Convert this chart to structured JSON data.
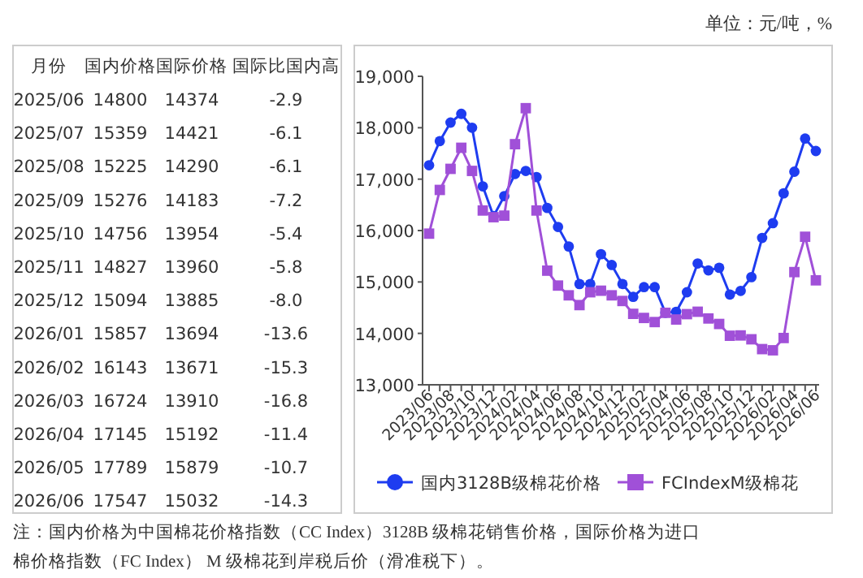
{
  "chart_data": [
    {
      "type": "other",
      "xlabel": "月份",
      "data_labels": true,
      "annotations": [
        "单位：元/吨，%"
      ],
      "categories": [
        "2025/06",
        "2025/07",
        "2025/08",
        "2025/09",
        "2025/10",
        "2025/11",
        "2025/12",
        "2026/01",
        "2026/02",
        "2026/03",
        "2026/04",
        "2026/05",
        "2026/06"
      ],
      "series": [
        {
          "name": "国内价格",
          "values": [
            14800,
            15359,
            15225,
            15276,
            14756,
            14827,
            15094,
            15857,
            16143,
            16724,
            17145,
            17789,
            17547
          ]
        },
        {
          "name": "国际价格",
          "values": [
            14374,
            14421,
            14290,
            14183,
            13954,
            13960,
            13885,
            13694,
            13671,
            13910,
            15192,
            15879,
            15032
          ]
        },
        {
          "name": "国际比国内高",
          "values": [
            -2.9,
            -6.1,
            -6.1,
            -7.2,
            -5.4,
            -5.8,
            -8.0,
            -13.6,
            -15.3,
            -16.8,
            -11.4,
            -10.7,
            -14.3
          ],
          "value_labels": [
            "-2.9",
            "-6.1",
            "-6.1",
            "-7.2",
            "-5.4",
            "-5.8",
            "-8.0",
            "-13.6",
            "-15.3",
            "-16.8",
            "-11.4",
            "-10.7",
            "-14.3"
          ]
        }
      ]
    },
    {
      "type": "line",
      "annotations": [
        "注：国内价格为中国棉花价格指数（CC Index）3128B 级棉花销售价格，国际价格为进口棉价格指数（FC Index） M 级棉花到岸税后价（滑准税下）。"
      ],
      "categories": [
        "2023/06",
        null,
        "2023/08",
        null,
        "2023/10",
        null,
        "2023/12",
        null,
        "2024/02",
        null,
        "2024/04",
        null,
        "2024/06",
        null,
        "2024/08",
        null,
        "2024/10",
        null,
        "2024/12",
        null,
        "2025/02",
        null,
        "2025/04",
        null,
        "2025/06",
        null,
        "2025/08",
        null,
        "2025/10",
        null,
        "2025/12",
        null,
        "2026/02",
        null,
        "2026/04",
        null,
        "2026/06"
      ],
      "ylim": [
        13000,
        19000
      ],
      "yticks": [
        {
          "value": 13000,
          "label": "13,000"
        },
        {
          "value": 14000,
          "label": "14,000"
        },
        {
          "value": 15000,
          "label": "15,000"
        },
        {
          "value": 16000,
          "label": "16,000"
        },
        {
          "value": 17000,
          "label": "17,000"
        },
        {
          "value": 18000,
          "label": "18,000"
        },
        {
          "value": 19000,
          "label": "19,000"
        }
      ],
      "grid": false,
      "legend": "bottom",
      "line_style": "solid",
      "series": [
        {
          "name": "国内3128B级棉花价格",
          "color": "#1e3cf0",
          "marker": "circle",
          "values": [
            17270,
            17740,
            18100,
            18270,
            18000,
            16860,
            16280,
            16670,
            17100,
            17160,
            17040,
            16440,
            16070,
            15690,
            14960,
            14960,
            15540,
            15330,
            14960,
            14710,
            14900,
            14900,
            14400,
            14420,
            14800,
            15359,
            15225,
            15276,
            14756,
            14827,
            15094,
            15857,
            16143,
            16724,
            17145,
            17789,
            17547
          ]
        },
        {
          "name": "FCIndexM级棉花",
          "color": "#a050d8",
          "marker": "square",
          "values": [
            15940,
            16790,
            17200,
            17610,
            17160,
            16390,
            16260,
            16290,
            17680,
            18380,
            16390,
            15220,
            14930,
            14740,
            14550,
            14800,
            14830,
            14740,
            14630,
            14380,
            14300,
            14220,
            14400,
            14270,
            14374,
            14421,
            14290,
            14183,
            13954,
            13960,
            13885,
            13694,
            13671,
            13910,
            15192,
            15879,
            15032
          ]
        }
      ]
    }
  ]
}
